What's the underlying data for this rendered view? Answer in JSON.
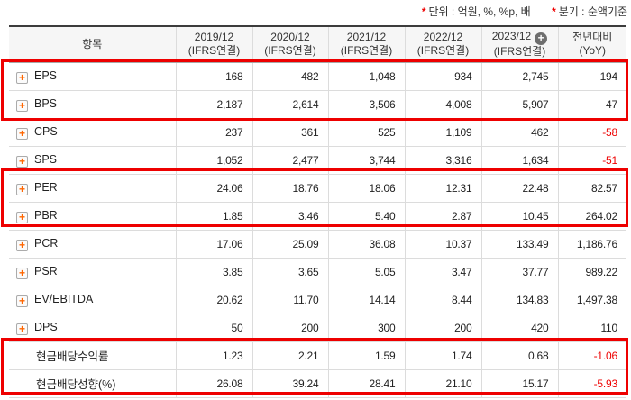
{
  "notes": [
    {
      "prefix": "*",
      "text": "단위 : 억원, %, %p, 배"
    },
    {
      "prefix": "*",
      "text": "분기 : 순액기준"
    }
  ],
  "table": {
    "columns": [
      {
        "line1": "항목",
        "line2": "",
        "plus_icon": false
      },
      {
        "line1": "2019/12",
        "line2": "(IFRS연결)",
        "plus_icon": false
      },
      {
        "line1": "2020/12",
        "line2": "(IFRS연결)",
        "plus_icon": false
      },
      {
        "line1": "2021/12",
        "line2": "(IFRS연결)",
        "plus_icon": false
      },
      {
        "line1": "2022/12",
        "line2": "(IFRS연결)",
        "plus_icon": true
      },
      {
        "line1": "2023/12",
        "line2": "(IFRS연결)",
        "plus_icon": false
      },
      {
        "line1": "전년대비",
        "line2": "(YoY)",
        "plus_icon": false
      }
    ],
    "plus_icon_column": "2023/12",
    "rows": [
      {
        "label": "EPS",
        "expand_icon": true,
        "values": [
          "168",
          "482",
          "1,048",
          "934",
          "2,745",
          "194"
        ]
      },
      {
        "label": "BPS",
        "expand_icon": true,
        "values": [
          "2,187",
          "2,614",
          "3,506",
          "4,008",
          "5,907",
          "47"
        ]
      },
      {
        "label": "CPS",
        "expand_icon": true,
        "values": [
          "237",
          "361",
          "525",
          "1,109",
          "462",
          "-58"
        ]
      },
      {
        "label": "SPS",
        "expand_icon": true,
        "values": [
          "1,052",
          "2,477",
          "3,744",
          "3,316",
          "1,634",
          "-51"
        ]
      },
      {
        "label": "PER",
        "expand_icon": true,
        "values": [
          "24.06",
          "18.76",
          "18.06",
          "12.31",
          "22.48",
          "82.57"
        ]
      },
      {
        "label": "PBR",
        "expand_icon": true,
        "values": [
          "1.85",
          "3.46",
          "5.40",
          "2.87",
          "10.45",
          "264.02"
        ]
      },
      {
        "label": "PCR",
        "expand_icon": true,
        "values": [
          "17.06",
          "25.09",
          "36.08",
          "10.37",
          "133.49",
          "1,186.76"
        ]
      },
      {
        "label": "PSR",
        "expand_icon": true,
        "values": [
          "3.85",
          "3.65",
          "5.05",
          "3.47",
          "37.77",
          "989.22"
        ]
      },
      {
        "label": "EV/EBITDA",
        "expand_icon": true,
        "values": [
          "20.62",
          "11.70",
          "14.14",
          "8.44",
          "134.83",
          "1,497.38"
        ]
      },
      {
        "label": "DPS",
        "expand_icon": true,
        "values": [
          "50",
          "200",
          "300",
          "200",
          "420",
          "110"
        ]
      },
      {
        "label": "현금배당수익률",
        "expand_icon": false,
        "values": [
          "1.23",
          "2.21",
          "1.59",
          "1.74",
          "0.68",
          "-1.06"
        ]
      },
      {
        "label": "현금배당성향(%)",
        "expand_icon": false,
        "values": [
          "26.08",
          "39.24",
          "28.41",
          "21.10",
          "15.17",
          "-5.93"
        ]
      }
    ],
    "expand_icon_glyph": "+",
    "add_column_icon_glyph": "+"
  },
  "colors": {
    "highlight_box": "#ee0000",
    "negative_value": "#ee0000",
    "expand_icon": "#ff6600"
  }
}
